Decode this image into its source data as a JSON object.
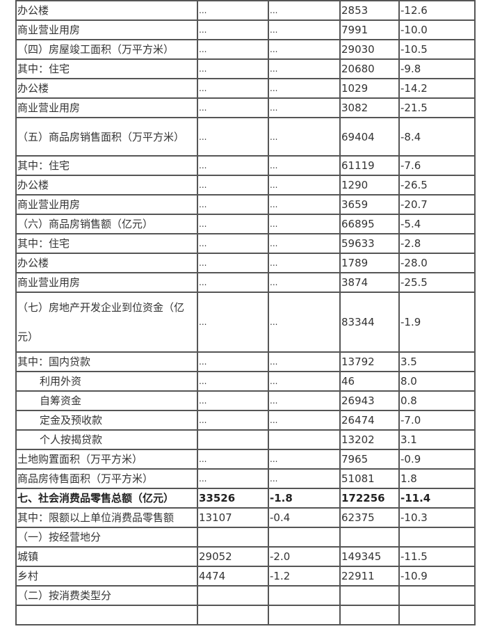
{
  "rows": [
    {
      "label": "办公楼",
      "v1": "...",
      "v2": "...",
      "v3": "2853",
      "v4": "-12.6"
    },
    {
      "label": "商业营业用房",
      "v1": "...",
      "v2": "...",
      "v3": "7991",
      "v4": "-10.0"
    },
    {
      "label": "（四）房屋竣工面积（万平方米）",
      "v1": "...",
      "v2": "...",
      "v3": "29030",
      "v4": "-10.5"
    },
    {
      "label": "其中：住宅",
      "v1": "...",
      "v2": "...",
      "v3": "20680",
      "v4": "-9.8"
    },
    {
      "label": "办公楼",
      "v1": "...",
      "v2": "...",
      "v3": "1029",
      "v4": "-14.2"
    },
    {
      "label": "商业营业用房",
      "v1": "...",
      "v2": "...",
      "v3": "3082",
      "v4": "-21.5"
    },
    {
      "label": "（五）商品房销售面积（万平方米）",
      "v1": "...",
      "v2": "...",
      "v3": "69404",
      "v4": "-8.4",
      "kind": "two"
    },
    {
      "label": "其中：住宅",
      "v1": "...",
      "v2": "...",
      "v3": "61119",
      "v4": "-7.6"
    },
    {
      "label": "办公楼",
      "v1": "...",
      "v2": "...",
      "v3": "1290",
      "v4": "-26.5"
    },
    {
      "label": "商业营业用房",
      "v1": "...",
      "v2": "...",
      "v3": "3659",
      "v4": "-20.7"
    },
    {
      "label": "（六）商品房销售额（亿元）",
      "v1": "...",
      "v2": "...",
      "v3": "66895",
      "v4": "-5.4"
    },
    {
      "label": "其中：住宅",
      "v1": "...",
      "v2": "...",
      "v3": "59633",
      "v4": "-2.8"
    },
    {
      "label": "办公楼",
      "v1": "...",
      "v2": "...",
      "v3": "1789",
      "v4": "-28.0"
    },
    {
      "label": "商业营业用房",
      "v1": "...",
      "v2": "...",
      "v3": "3874",
      "v4": "-25.5"
    },
    {
      "label": "（七）房地产开发企业到位资金（亿元）",
      "v1": "...",
      "v2": "...",
      "v3": "83344",
      "v4": "-1.9",
      "kind": "three"
    },
    {
      "label": "其中：国内贷款",
      "v1": "...",
      "v2": "...",
      "v3": "13792",
      "v4": "3.5"
    },
    {
      "label": "利用外资",
      "v1": "...",
      "v2": "...",
      "v3": "46",
      "v4": "8.0",
      "indent": true
    },
    {
      "label": "自筹资金",
      "v1": "...",
      "v2": "...",
      "v3": "26943",
      "v4": "0.8",
      "indent": true
    },
    {
      "label": "定金及预收款",
      "v1": "...",
      "v2": "...",
      "v3": "26474",
      "v4": "-7.0",
      "indent": true
    },
    {
      "label": "个人按揭贷款",
      "v1": "",
      "v2": "",
      "v3": "13202",
      "v4": "3.1",
      "indent": true
    },
    {
      "label": "土地购置面积（万平方米）",
      "v1": "...",
      "v2": "...",
      "v3": "7965",
      "v4": "-0.9"
    },
    {
      "label": "商品房待售面积（万平方米）",
      "v1": "...",
      "v2": "...",
      "v3": "51081",
      "v4": "1.8"
    },
    {
      "label": "七、社会消费品零售总额（亿元）",
      "v1": "33526",
      "v2": "-1.8",
      "v3": "172256",
      "v4": "-11.4",
      "bold": true
    },
    {
      "label": "其中：限额以上单位消费品零售额",
      "v1": "13107",
      "v2": "-0.4",
      "v3": "62375",
      "v4": "-10.3"
    },
    {
      "label": "（一）按经营地分",
      "v1": "",
      "v2": "",
      "v3": "",
      "v4": ""
    },
    {
      "label": "城镇",
      "v1": "29052",
      "v2": "-2.0",
      "v3": "149345",
      "v4": "-11.5"
    },
    {
      "label": "乡村",
      "v1": "4474",
      "v2": "-1.2",
      "v3": "22911",
      "v4": "-10.9"
    },
    {
      "label": "（二）按消费类型分",
      "v1": "",
      "v2": "",
      "v3": "",
      "v4": ""
    },
    {
      "label": "",
      "v1": "",
      "v2": "",
      "v3": "",
      "v4": ""
    }
  ]
}
